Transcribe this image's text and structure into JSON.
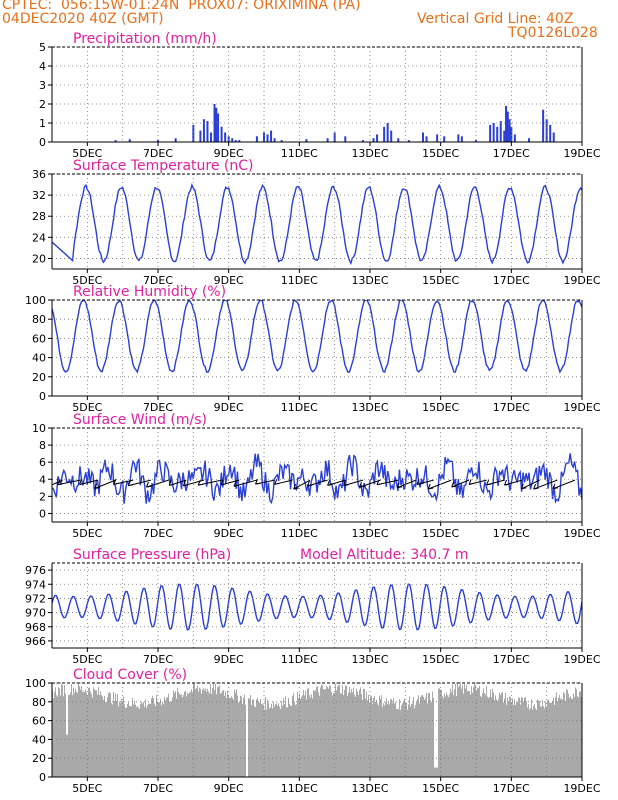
{
  "header": {
    "line1_left": "CPTEC:  056:15W-01:24N  PROX07: ORIXIMINA (PA)",
    "line2_left": "04DEC2020 40Z (GMT)",
    "line2_right": "Vertical Grid Line: 40Z",
    "line3_right": "TQ0126L028"
  },
  "colors": {
    "header": "#e8701a",
    "title": "#e0209f",
    "series": "#2a3fd6",
    "cloud": "#a9a9a9",
    "arrow": "#000000"
  },
  "chart_data": [
    {
      "type": "bar",
      "title": "Precipitation (mm/h)",
      "ylim": [
        0,
        5
      ],
      "yticks": [
        "0",
        "1",
        "2",
        "3",
        "4",
        "5"
      ],
      "x_tick_labels": [
        "5DEC",
        "7DEC",
        "9DEC",
        "11DEC",
        "13DEC",
        "15DEC",
        "17DEC",
        "19DEC"
      ],
      "x": [
        4.0,
        15.0
      ],
      "values": [
        [
          5.8,
          0.1
        ],
        [
          6.2,
          0.15
        ],
        [
          7.0,
          0.1
        ],
        [
          7.5,
          0.2
        ],
        [
          8.0,
          0.9
        ],
        [
          8.2,
          0.6
        ],
        [
          8.3,
          1.2
        ],
        [
          8.4,
          1.1
        ],
        [
          8.5,
          0.5
        ],
        [
          8.6,
          2.0
        ],
        [
          8.65,
          1.8
        ],
        [
          8.7,
          1.5
        ],
        [
          8.8,
          0.8
        ],
        [
          8.9,
          0.5
        ],
        [
          9.0,
          0.3
        ],
        [
          9.1,
          0.2
        ],
        [
          9.2,
          0.1
        ],
        [
          9.3,
          0.1
        ],
        [
          9.8,
          0.3
        ],
        [
          10.0,
          0.5
        ],
        [
          10.1,
          0.4
        ],
        [
          10.2,
          0.6
        ],
        [
          10.3,
          0.2
        ],
        [
          10.5,
          0.1
        ],
        [
          11.2,
          0.15
        ],
        [
          11.8,
          0.2
        ],
        [
          12.0,
          0.5
        ],
        [
          12.3,
          0.3
        ],
        [
          12.8,
          0.1
        ],
        [
          13.1,
          0.2
        ],
        [
          13.2,
          0.4
        ],
        [
          13.4,
          0.8
        ],
        [
          13.5,
          1.0
        ],
        [
          13.6,
          0.6
        ],
        [
          13.8,
          0.2
        ],
        [
          14.1,
          0.1
        ],
        [
          14.5,
          0.5
        ],
        [
          14.6,
          0.3
        ],
        [
          14.9,
          0.4
        ],
        [
          15.1,
          0.3
        ],
        [
          15.5,
          0.4
        ],
        [
          15.6,
          0.3
        ],
        [
          16.0,
          0.1
        ],
        [
          16.4,
          0.9
        ],
        [
          16.5,
          1.0
        ],
        [
          16.6,
          0.8
        ],
        [
          16.7,
          1.1
        ],
        [
          16.8,
          0.6
        ],
        [
          16.85,
          1.9
        ],
        [
          16.9,
          1.6
        ],
        [
          16.95,
          1.2
        ],
        [
          17.0,
          0.8
        ],
        [
          17.1,
          0.4
        ],
        [
          17.5,
          0.2
        ],
        [
          17.9,
          1.7
        ],
        [
          18.0,
          1.2
        ],
        [
          18.1,
          0.9
        ],
        [
          18.2,
          0.5
        ]
      ]
    },
    {
      "type": "line",
      "title": "Surface Temperature (nC)",
      "ylim": [
        18,
        36
      ],
      "yticks": [
        "20",
        "24",
        "28",
        "32",
        "36"
      ],
      "x_tick_labels": [
        "5DEC",
        "7DEC",
        "9DEC",
        "11DEC",
        "13DEC",
        "15DEC",
        "17DEC",
        "19DEC"
      ],
      "series": [
        {
          "kind": "diurnal",
          "base": 26.5,
          "amp": 7,
          "peak": 0.65,
          "noise": 0.8
        }
      ]
    },
    {
      "type": "line",
      "title": "Relative Humidity (%)",
      "ylim": [
        0,
        100
      ],
      "yticks": [
        "0",
        "20",
        "40",
        "60",
        "80",
        "100"
      ],
      "x_tick_labels": [
        "5DEC",
        "7DEC",
        "9DEC",
        "11DEC",
        "13DEC",
        "15DEC",
        "17DEC",
        "19DEC"
      ],
      "series": [
        {
          "kind": "diurnal_inv",
          "base": 63,
          "amp": 37,
          "peak": 0.15,
          "noise": 4
        }
      ]
    },
    {
      "type": "line",
      "title": "Surface Wind (m/s)",
      "ylim": [
        -1,
        10
      ],
      "yticks": [
        "0",
        "2",
        "4",
        "6",
        "8",
        "10"
      ],
      "x_tick_labels": [
        "5DEC",
        "7DEC",
        "9DEC",
        "11DEC",
        "13DEC",
        "15DEC",
        "17DEC",
        "19DEC"
      ],
      "series": [
        {
          "kind": "wind",
          "base": 4,
          "amp": 1.8,
          "noise": 1.2
        }
      ]
    },
    {
      "type": "line",
      "title": "Surface Pressure (hPa)",
      "annotation": "Model Altitude: 340.7 m",
      "ylim": [
        965,
        977
      ],
      "yticks": [
        "966",
        "968",
        "970",
        "972",
        "974",
        "976"
      ],
      "x_tick_labels": [
        "5DEC",
        "7DEC",
        "9DEC",
        "11DEC",
        "13DEC",
        "15DEC",
        "17DEC",
        "19DEC"
      ],
      "series": [
        {
          "kind": "pressure",
          "base": 970.8,
          "amp": 3
        }
      ]
    },
    {
      "type": "area",
      "title": "Cloud Cover (%)",
      "ylim": [
        0,
        100
      ],
      "yticks": [
        "0",
        "20",
        "40",
        "60",
        "80",
        "100"
      ],
      "x_tick_labels": [
        "5DEC",
        "7DEC",
        "9DEC",
        "11DEC",
        "13DEC",
        "15DEC",
        "17DEC",
        "19DEC"
      ],
      "series": [
        {
          "kind": "cloud",
          "base": 86
        }
      ]
    }
  ]
}
